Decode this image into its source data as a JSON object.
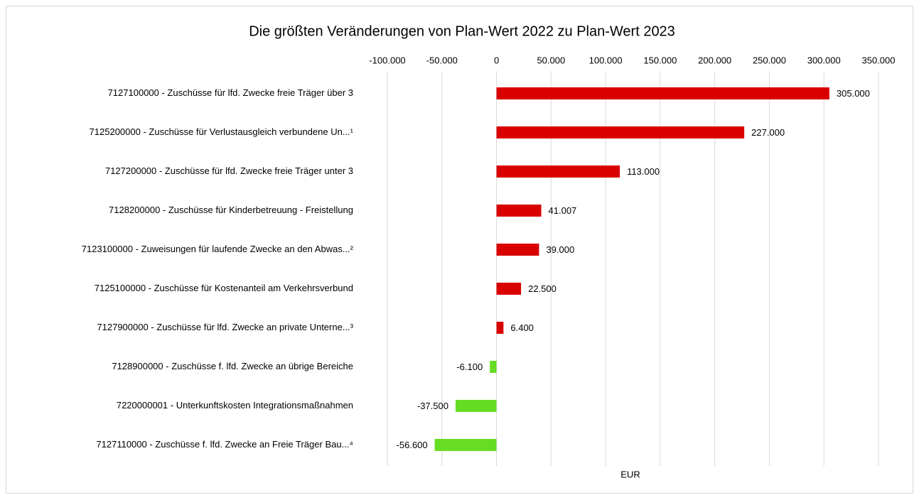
{
  "chart_data": {
    "type": "hbar",
    "title": "Die größten Veränderungen von Plan-Wert 2022 zu Plan-Wert 2023",
    "x_label": "EUR",
    "categories": [
      "7127100000 - Zuschüsse für lfd. Zwecke freie Träger über 3",
      "7125200000 - Zuschüsse für Verlustausgleich verbundene Un...¹",
      "7127200000 - Zuschüsse für lfd. Zwecke freie Träger unter 3",
      "7128200000 - Zuschüsse für Kinderbetreuung - Freistellung",
      "7123100000 - Zuweisungen für laufende Zwecke an den Abwas...²",
      "7125100000 - Zuschüsse für Kostenanteil am Verkehrsverbund",
      "7127900000 - Zuschüsse für lfd. Zwecke an private Unterne...³",
      "7128900000 - Zuschüsse f. lfd. Zwecke an übrige Bereiche",
      "7220000001 - Unterkunftskosten Integrationsmaßnahmen",
      "7127110000 - Zuschüsse f. lfd. Zwecke an Freie Träger Bau...⁴"
    ],
    "values": [
      305000,
      227000,
      113000,
      41007,
      39000,
      22500,
      6400,
      -6100,
      -37500,
      -56600
    ],
    "value_labels": [
      "305.000",
      "227.000",
      "113.000",
      "41.007",
      "39.000",
      "22.500",
      "6.400",
      "-6.100",
      "-37.500",
      "-56.600"
    ],
    "colors": [
      "#d90000",
      "#d90000",
      "#d90000",
      "#d90000",
      "#d90000",
      "#d90000",
      "#d90000",
      "#66dd22",
      "#66dd22",
      "#66dd22"
    ],
    "xlim": [
      -100000,
      350000
    ],
    "xticks": [
      {
        "value": -100000,
        "label": "-100.000"
      },
      {
        "value": -50000,
        "label": "-50.000"
      },
      0,
      {
        "value": 50000,
        "label": "50.000"
      },
      {
        "value": 100000,
        "label": "100.000"
      },
      {
        "value": 150000,
        "label": "150.000"
      },
      {
        "value": 200000,
        "label": "200.000"
      },
      {
        "value": 250000,
        "label": "250.000"
      },
      {
        "value": 300000,
        "label": "300.000"
      },
      {
        "value": 350000,
        "label": "350.000"
      }
    ],
    "grid": true
  }
}
